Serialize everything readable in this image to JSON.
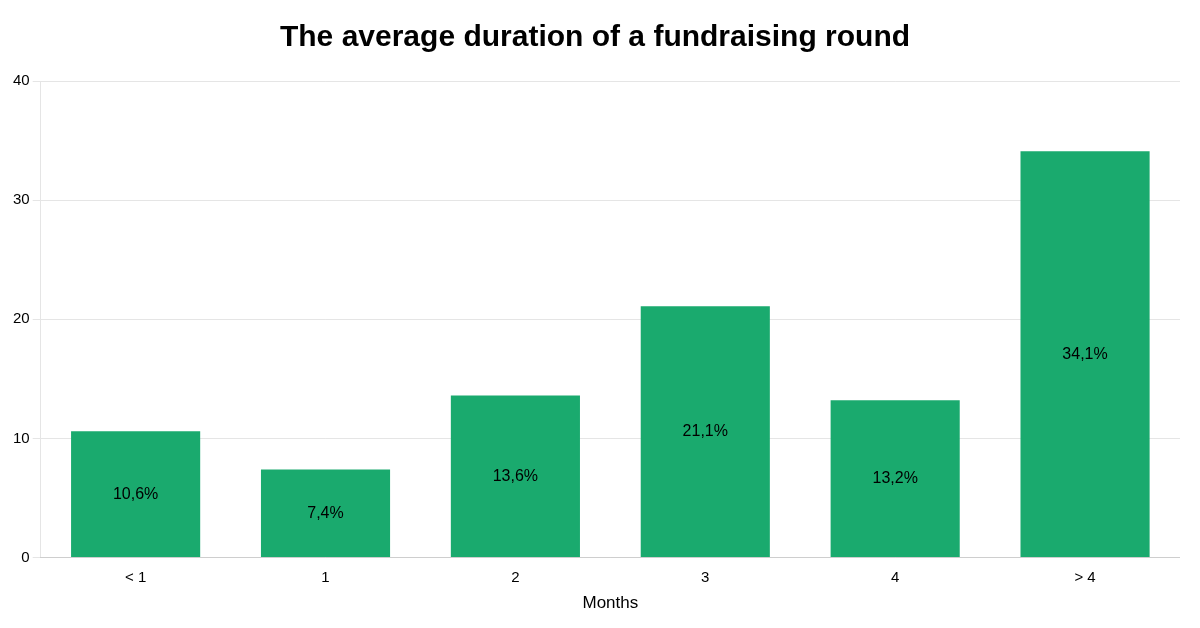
{
  "chart_data": {
    "type": "bar",
    "title": "The average duration of a fundraising round",
    "xlabel": "Months",
    "categories": [
      "< 1",
      "1",
      "2",
      "3",
      "4",
      "> 4"
    ],
    "values": [
      10.6,
      7.4,
      13.6,
      21.1,
      13.2,
      34.1
    ],
    "value_labels": [
      "10,6%",
      "7,4%",
      "13,6%",
      "21,1%",
      "13,2%",
      "34,1%"
    ],
    "data_labels": true,
    "color": "#1aaa6e",
    "ylim": [
      0,
      40
    ],
    "yticks": [
      0,
      10,
      20,
      30,
      40
    ],
    "grid": true
  }
}
